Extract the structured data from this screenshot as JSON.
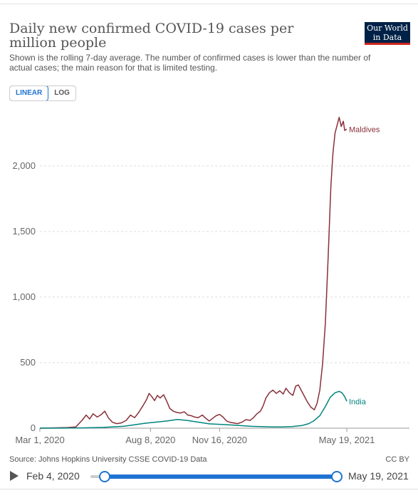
{
  "header": {
    "title": "Daily new confirmed COVID-19 cases per million people",
    "subtitle": "Shown is the rolling 7-day average. The number of confirmed cases is lower than the number of actual cases; the main reason for that is limited testing.",
    "logo": "Our World in Data"
  },
  "controls": {
    "linear_label": "LINEAR",
    "log_label": "LOG",
    "active": "LINEAR"
  },
  "chart_data": {
    "type": "line",
    "title": "Daily new confirmed COVID-19 cases per million people",
    "ylim": [
      0,
      2450
    ],
    "yticks": [
      0,
      500,
      1000,
      1500,
      2000
    ],
    "ytick_labels": [
      "0",
      "500",
      "1,000",
      "1,500",
      "2,000"
    ],
    "xlim": [
      "2020-03-01",
      "2021-05-19"
    ],
    "xticks": [
      "2020-03-01",
      "2020-08-08",
      "2020-11-16",
      "2021-05-19"
    ],
    "xtick_labels": [
      "Mar 1, 2020",
      "Aug 8, 2020",
      "Nov 16, 2020",
      "May 19, 2021"
    ],
    "grid": "horizontal-dashed",
    "series": [
      {
        "name": "Maldives",
        "color": "#883039",
        "points": [
          [
            "2020-03-01",
            0
          ],
          [
            "2020-03-20",
            2
          ],
          [
            "2020-04-10",
            5
          ],
          [
            "2020-04-22",
            10
          ],
          [
            "2020-05-01",
            60
          ],
          [
            "2020-05-07",
            100
          ],
          [
            "2020-05-12",
            70
          ],
          [
            "2020-05-17",
            110
          ],
          [
            "2020-05-23",
            85
          ],
          [
            "2020-05-29",
            105
          ],
          [
            "2020-06-03",
            130
          ],
          [
            "2020-06-08",
            80
          ],
          [
            "2020-06-14",
            45
          ],
          [
            "2020-06-20",
            35
          ],
          [
            "2020-06-27",
            40
          ],
          [
            "2020-07-04",
            60
          ],
          [
            "2020-07-10",
            100
          ],
          [
            "2020-07-16",
            80
          ],
          [
            "2020-07-22",
            120
          ],
          [
            "2020-07-28",
            170
          ],
          [
            "2020-08-02",
            215
          ],
          [
            "2020-08-06",
            265
          ],
          [
            "2020-08-10",
            240
          ],
          [
            "2020-08-14",
            210
          ],
          [
            "2020-08-18",
            250
          ],
          [
            "2020-08-22",
            230
          ],
          [
            "2020-08-27",
            255
          ],
          [
            "2020-09-01",
            200
          ],
          [
            "2020-09-05",
            150
          ],
          [
            "2020-09-10",
            130
          ],
          [
            "2020-09-15",
            120
          ],
          [
            "2020-09-20",
            115
          ],
          [
            "2020-09-26",
            125
          ],
          [
            "2020-10-01",
            100
          ],
          [
            "2020-10-06",
            95
          ],
          [
            "2020-10-11",
            85
          ],
          [
            "2020-10-16",
            80
          ],
          [
            "2020-10-22",
            100
          ],
          [
            "2020-10-27",
            75
          ],
          [
            "2020-11-01",
            55
          ],
          [
            "2020-11-06",
            75
          ],
          [
            "2020-11-11",
            95
          ],
          [
            "2020-11-16",
            105
          ],
          [
            "2020-11-21",
            85
          ],
          [
            "2020-11-26",
            55
          ],
          [
            "2020-12-01",
            45
          ],
          [
            "2020-12-06",
            40
          ],
          [
            "2020-12-12",
            35
          ],
          [
            "2020-12-18",
            45
          ],
          [
            "2020-12-24",
            65
          ],
          [
            "2020-12-30",
            60
          ],
          [
            "2021-01-04",
            80
          ],
          [
            "2021-01-09",
            110
          ],
          [
            "2021-01-14",
            130
          ],
          [
            "2021-01-18",
            170
          ],
          [
            "2021-01-22",
            230
          ],
          [
            "2021-01-27",
            270
          ],
          [
            "2021-02-01",
            290
          ],
          [
            "2021-02-06",
            265
          ],
          [
            "2021-02-11",
            285
          ],
          [
            "2021-02-16",
            260
          ],
          [
            "2021-02-20",
            305
          ],
          [
            "2021-02-25",
            270
          ],
          [
            "2021-03-02",
            250
          ],
          [
            "2021-03-06",
            320
          ],
          [
            "2021-03-10",
            330
          ],
          [
            "2021-03-14",
            290
          ],
          [
            "2021-03-18",
            250
          ],
          [
            "2021-03-23",
            200
          ],
          [
            "2021-03-28",
            160
          ],
          [
            "2021-04-02",
            140
          ],
          [
            "2021-04-06",
            190
          ],
          [
            "2021-04-10",
            290
          ],
          [
            "2021-04-14",
            490
          ],
          [
            "2021-04-18",
            800
          ],
          [
            "2021-04-22",
            1300
          ],
          [
            "2021-04-26",
            1850
          ],
          [
            "2021-04-29",
            2100
          ],
          [
            "2021-05-02",
            2250
          ],
          [
            "2021-05-05",
            2310
          ],
          [
            "2021-05-08",
            2370
          ],
          [
            "2021-05-11",
            2300
          ],
          [
            "2021-05-14",
            2340
          ],
          [
            "2021-05-16",
            2270
          ],
          [
            "2021-05-19",
            2280
          ]
        ]
      },
      {
        "name": "India",
        "color": "#00847e",
        "points": [
          [
            "2020-03-01",
            0
          ],
          [
            "2020-04-01",
            0.5
          ],
          [
            "2020-05-01",
            2
          ],
          [
            "2020-06-01",
            6
          ],
          [
            "2020-07-01",
            15
          ],
          [
            "2020-08-01",
            38
          ],
          [
            "2020-09-01",
            55
          ],
          [
            "2020-09-16",
            67
          ],
          [
            "2020-10-01",
            58
          ],
          [
            "2020-11-01",
            33
          ],
          [
            "2020-12-01",
            25
          ],
          [
            "2021-01-01",
            14
          ],
          [
            "2021-02-01",
            9
          ],
          [
            "2021-02-15",
            9
          ],
          [
            "2021-03-01",
            12
          ],
          [
            "2021-03-15",
            20
          ],
          [
            "2021-03-25",
            35
          ],
          [
            "2021-04-01",
            55
          ],
          [
            "2021-04-10",
            95
          ],
          [
            "2021-04-18",
            165
          ],
          [
            "2021-04-25",
            235
          ],
          [
            "2021-05-02",
            270
          ],
          [
            "2021-05-08",
            281
          ],
          [
            "2021-05-12",
            270
          ],
          [
            "2021-05-16",
            240
          ],
          [
            "2021-05-19",
            205
          ]
        ]
      }
    ]
  },
  "footer": {
    "source": "Source: Johns Hopkins University CSSE COVID-19 Data",
    "license": "CC BY"
  },
  "timeline": {
    "start_label": "Feb 4, 2020",
    "end_label": "May 19, 2021"
  }
}
